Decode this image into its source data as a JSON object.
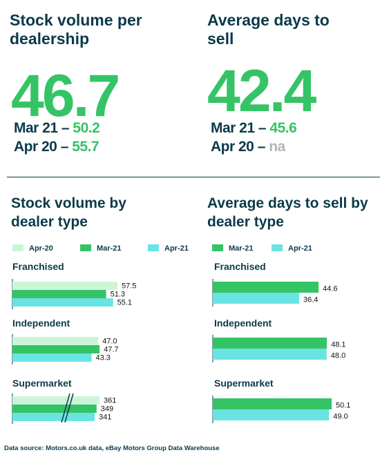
{
  "kpis": [
    {
      "title": "Stock volume per dealership",
      "value": "46.7",
      "comparisons": [
        {
          "label": "Mar 21 – ",
          "value": "50.2",
          "style": "green"
        },
        {
          "label": "Apr 20 – ",
          "value": "55.7",
          "style": "green"
        }
      ]
    },
    {
      "title": "Average days to sell",
      "value": "42.4",
      "comparisons": [
        {
          "label": "Mar 21 – ",
          "value": "45.6",
          "style": "green"
        },
        {
          "label": "Apr 20 – ",
          "value": "na",
          "style": "na"
        }
      ]
    }
  ],
  "colors": {
    "navy": "#0b3a4a",
    "green": "#35c465",
    "Apr-20": "#ccf5d8",
    "Mar-21": "#35c465",
    "Apr-21": "#6ae3e3"
  },
  "source": "Data source: Motors.co.uk data, eBay Motors Group Data Warehouse",
  "chart_data": [
    {
      "type": "bar",
      "orientation": "horizontal",
      "title": "Stock volume by dealer type",
      "legend": [
        "Apr-20",
        "Mar-21",
        "Apr-21"
      ],
      "categories": [
        "Franchised",
        "Independent",
        "Supermarket"
      ],
      "series": [
        {
          "name": "Apr-20",
          "values": [
            57.5,
            47.0,
            361
          ]
        },
        {
          "name": "Mar-21",
          "values": [
            51.3,
            47.7,
            349
          ]
        },
        {
          "name": "Apr-21",
          "values": [
            55.1,
            43.3,
            341
          ]
        }
      ],
      "value_labels": [
        [
          "57.5",
          "51.3",
          "55.1"
        ],
        [
          "47.0",
          "47.7",
          "43.3"
        ],
        [
          "361",
          "349",
          "341"
        ]
      ],
      "axis_break": "Supermarket"
    },
    {
      "type": "bar",
      "orientation": "horizontal",
      "title": "Average days to sell by dealer type",
      "legend": [
        "Mar-21",
        "Apr-21"
      ],
      "categories": [
        "Franchised",
        "Independent",
        "Supermarket"
      ],
      "series": [
        {
          "name": "Mar-21",
          "values": [
            44.6,
            48.1,
            50.1
          ]
        },
        {
          "name": "Apr-21",
          "values": [
            36.4,
            48.0,
            49.0
          ]
        }
      ],
      "value_labels": [
        [
          "44.6",
          "36.4"
        ],
        [
          "48.1",
          "48.0"
        ],
        [
          "50.1",
          "49.0"
        ]
      ]
    }
  ]
}
